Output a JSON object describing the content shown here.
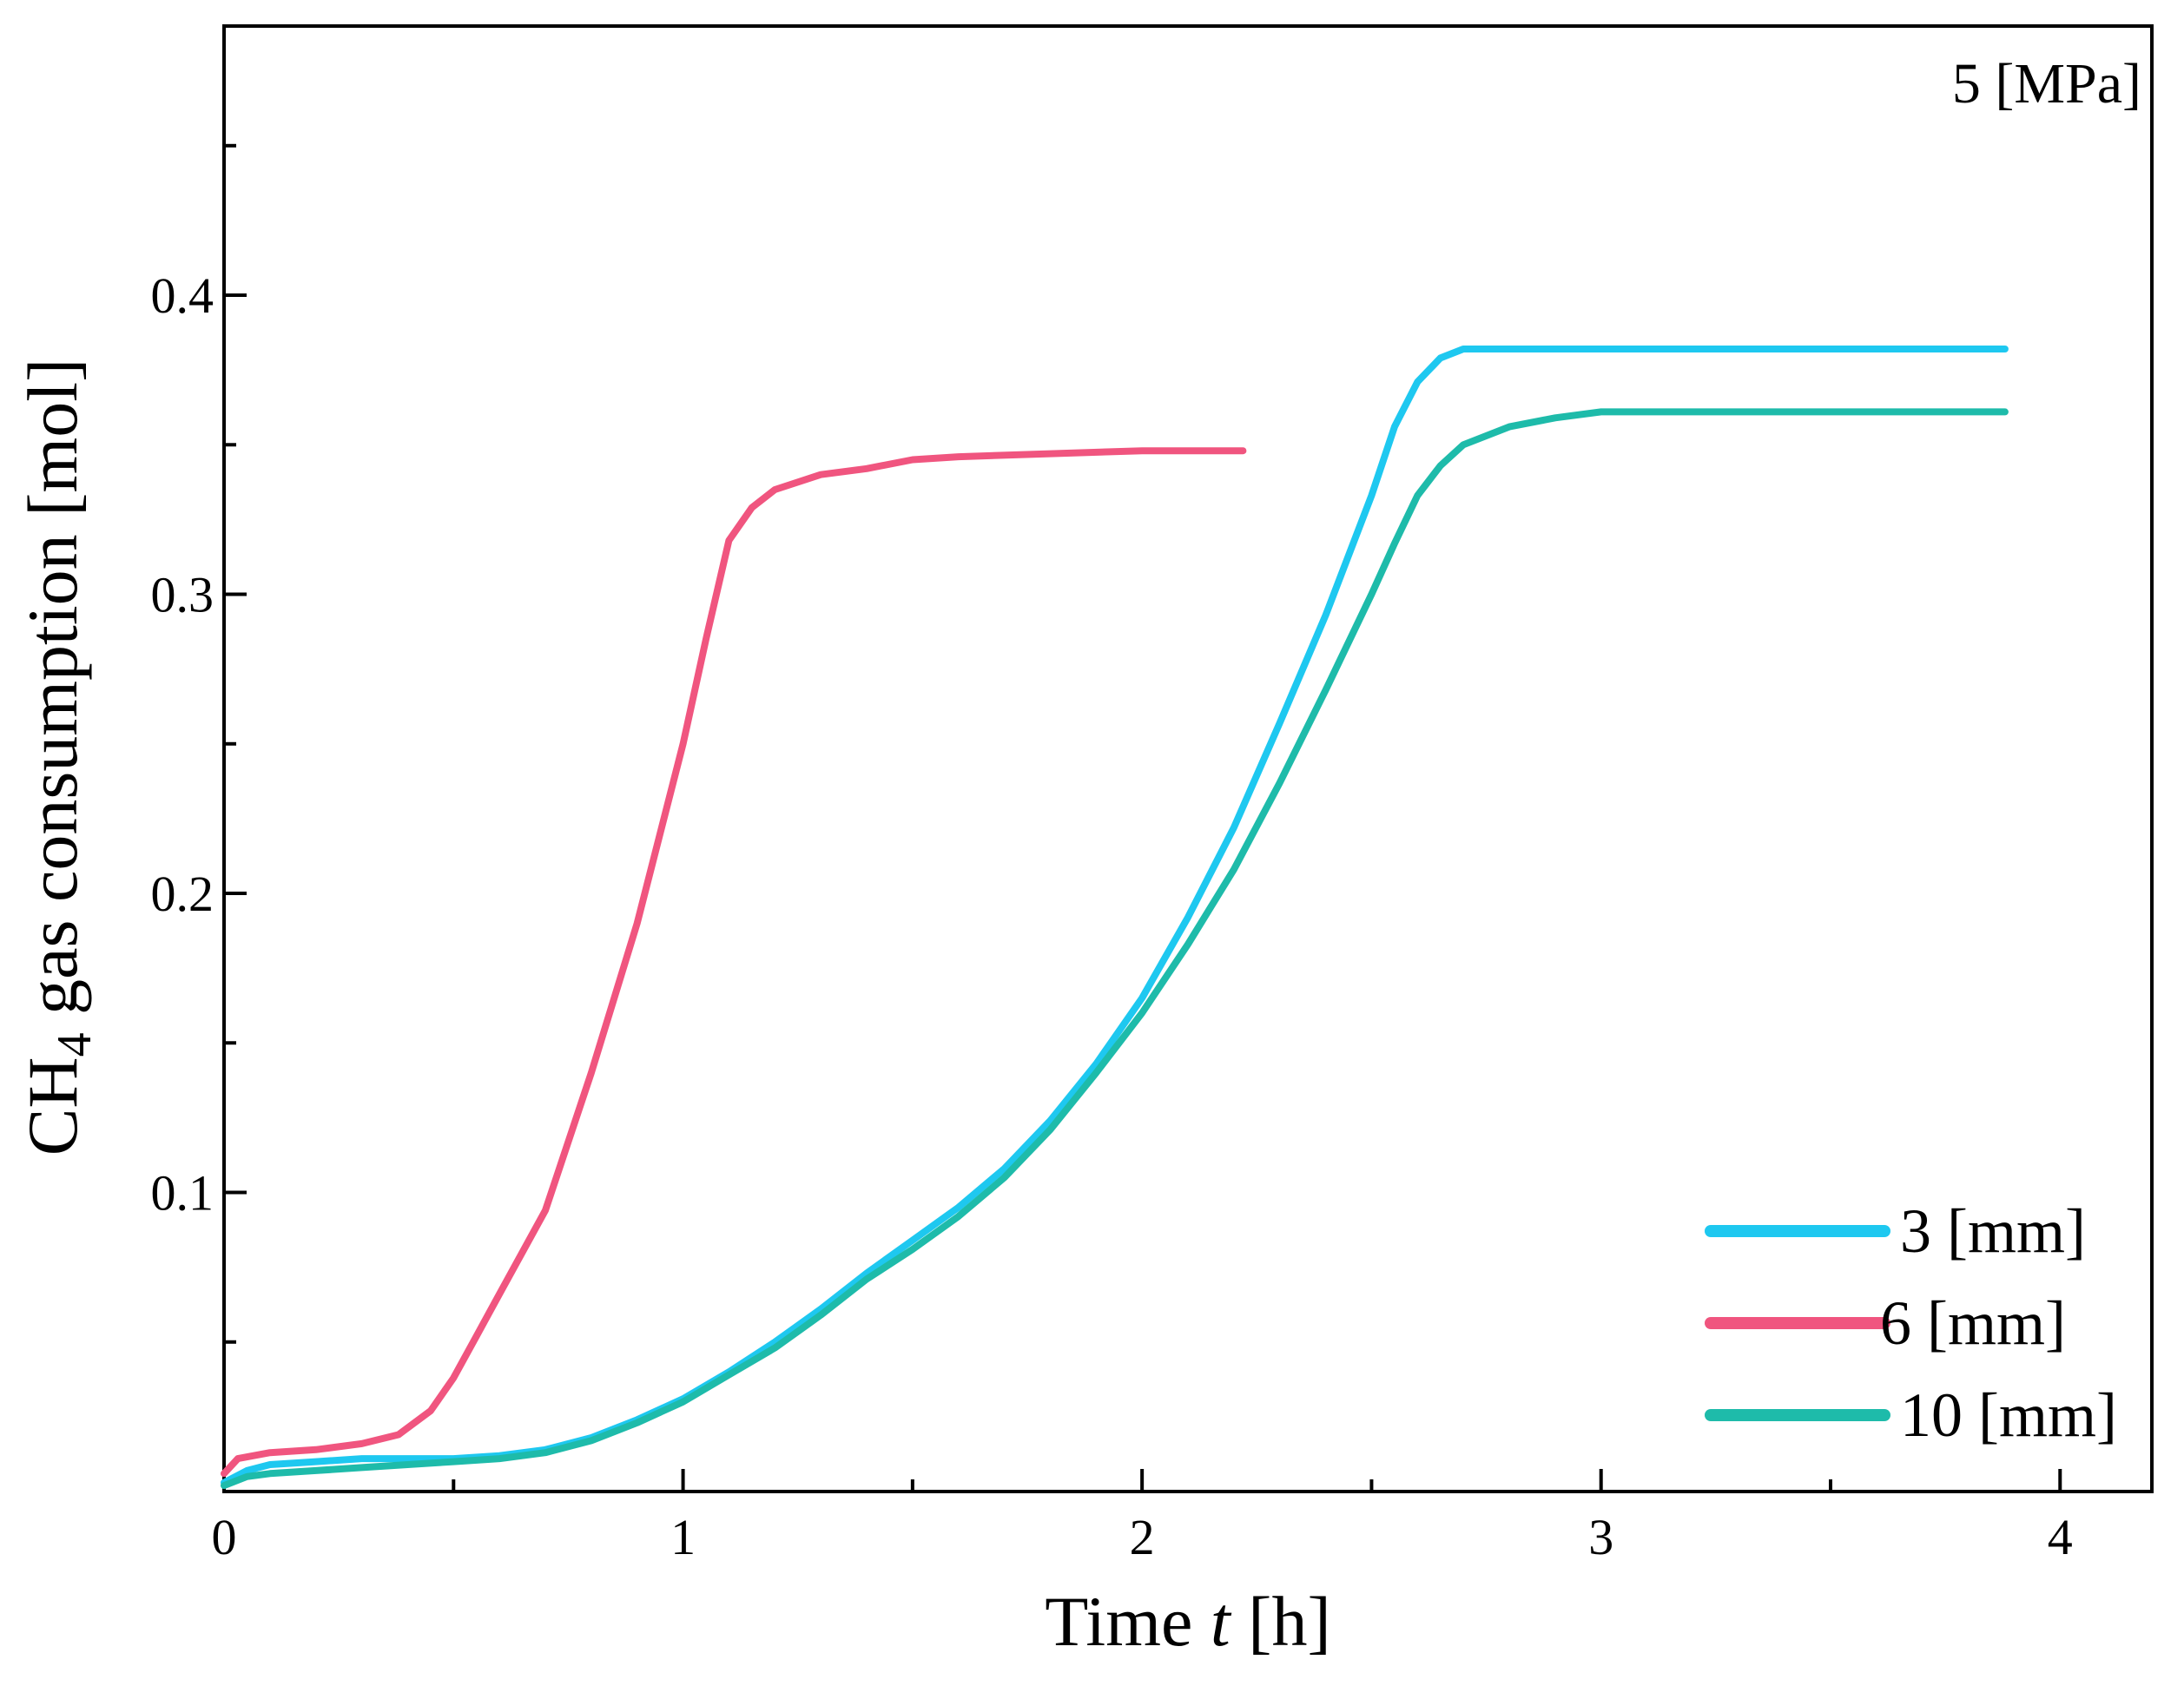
{
  "chart_data": {
    "type": "line",
    "annotation": "5 [MPa]",
    "xlabel": {
      "prefix": "Time ",
      "italic": "t",
      "suffix": " [h]"
    },
    "ylabel": {
      "prefix": "CH",
      "sub": "4",
      "suffix": " gas consumption [mol]"
    },
    "xlim": [
      0,
      4.2
    ],
    "ylim": [
      0,
      0.49
    ],
    "x_ticks": [
      0,
      1,
      2,
      3,
      4
    ],
    "x_tick_labels": [
      "0",
      "1",
      "2",
      "3",
      "4"
    ],
    "x_minor_ticks": [
      0.5,
      1.5,
      2.5,
      3.5
    ],
    "y_ticks": [
      0.1,
      0.2,
      0.3,
      0.4
    ],
    "y_tick_labels": [
      "0.1",
      "0.2",
      "0.3",
      "0.4"
    ],
    "y_minor_ticks": [
      0.05,
      0.15,
      0.25,
      0.35,
      0.45
    ],
    "legend_position": "bottom-right",
    "series": [
      {
        "name": "3 [mm]",
        "color": "#1EC8F0",
        "points": [
          [
            0,
            0.003
          ],
          [
            0.05,
            0.007
          ],
          [
            0.1,
            0.009
          ],
          [
            0.2,
            0.01
          ],
          [
            0.3,
            0.011
          ],
          [
            0.4,
            0.011
          ],
          [
            0.5,
            0.011
          ],
          [
            0.6,
            0.012
          ],
          [
            0.7,
            0.014
          ],
          [
            0.8,
            0.018
          ],
          [
            0.9,
            0.024
          ],
          [
            1.0,
            0.031
          ],
          [
            1.1,
            0.04
          ],
          [
            1.2,
            0.05
          ],
          [
            1.3,
            0.061
          ],
          [
            1.4,
            0.073
          ],
          [
            1.5,
            0.084
          ],
          [
            1.6,
            0.095
          ],
          [
            1.7,
            0.108
          ],
          [
            1.8,
            0.124
          ],
          [
            1.9,
            0.143
          ],
          [
            2.0,
            0.165
          ],
          [
            2.1,
            0.192
          ],
          [
            2.2,
            0.222
          ],
          [
            2.3,
            0.257
          ],
          [
            2.4,
            0.293
          ],
          [
            2.5,
            0.333
          ],
          [
            2.55,
            0.356
          ],
          [
            2.6,
            0.371
          ],
          [
            2.65,
            0.379
          ],
          [
            2.7,
            0.382
          ],
          [
            3.0,
            0.382
          ],
          [
            3.5,
            0.382
          ],
          [
            3.88,
            0.382
          ]
        ]
      },
      {
        "name": "6 [mm]",
        "color": "#F0557F",
        "points": [
          [
            0,
            0.006
          ],
          [
            0.03,
            0.011
          ],
          [
            0.1,
            0.013
          ],
          [
            0.2,
            0.014
          ],
          [
            0.3,
            0.016
          ],
          [
            0.38,
            0.019
          ],
          [
            0.45,
            0.027
          ],
          [
            0.5,
            0.038
          ],
          [
            0.55,
            0.052
          ],
          [
            0.6,
            0.066
          ],
          [
            0.7,
            0.094
          ],
          [
            0.8,
            0.14
          ],
          [
            0.9,
            0.19
          ],
          [
            1.0,
            0.25
          ],
          [
            1.05,
            0.285
          ],
          [
            1.1,
            0.318
          ],
          [
            1.15,
            0.329
          ],
          [
            1.2,
            0.335
          ],
          [
            1.3,
            0.34
          ],
          [
            1.4,
            0.342
          ],
          [
            1.5,
            0.345
          ],
          [
            1.6,
            0.346
          ],
          [
            1.8,
            0.347
          ],
          [
            2.0,
            0.348
          ],
          [
            2.22,
            0.348
          ]
        ]
      },
      {
        "name": "10 [mm]",
        "color": "#1EBBAA",
        "points": [
          [
            0,
            0.002
          ],
          [
            0.05,
            0.005
          ],
          [
            0.1,
            0.006
          ],
          [
            0.2,
            0.007
          ],
          [
            0.3,
            0.008
          ],
          [
            0.4,
            0.009
          ],
          [
            0.5,
            0.01
          ],
          [
            0.6,
            0.011
          ],
          [
            0.7,
            0.013
          ],
          [
            0.8,
            0.017
          ],
          [
            0.9,
            0.023
          ],
          [
            1.0,
            0.03
          ],
          [
            1.1,
            0.039
          ],
          [
            1.2,
            0.048
          ],
          [
            1.3,
            0.059
          ],
          [
            1.4,
            0.071
          ],
          [
            1.5,
            0.081
          ],
          [
            1.6,
            0.092
          ],
          [
            1.7,
            0.105
          ],
          [
            1.8,
            0.121
          ],
          [
            1.9,
            0.14
          ],
          [
            2.0,
            0.16
          ],
          [
            2.1,
            0.183
          ],
          [
            2.2,
            0.208
          ],
          [
            2.3,
            0.237
          ],
          [
            2.4,
            0.268
          ],
          [
            2.5,
            0.3
          ],
          [
            2.55,
            0.317
          ],
          [
            2.6,
            0.333
          ],
          [
            2.65,
            0.343
          ],
          [
            2.7,
            0.35
          ],
          [
            2.8,
            0.356
          ],
          [
            2.9,
            0.359
          ],
          [
            3.0,
            0.361
          ],
          [
            3.5,
            0.361
          ],
          [
            3.88,
            0.361
          ]
        ]
      }
    ]
  }
}
